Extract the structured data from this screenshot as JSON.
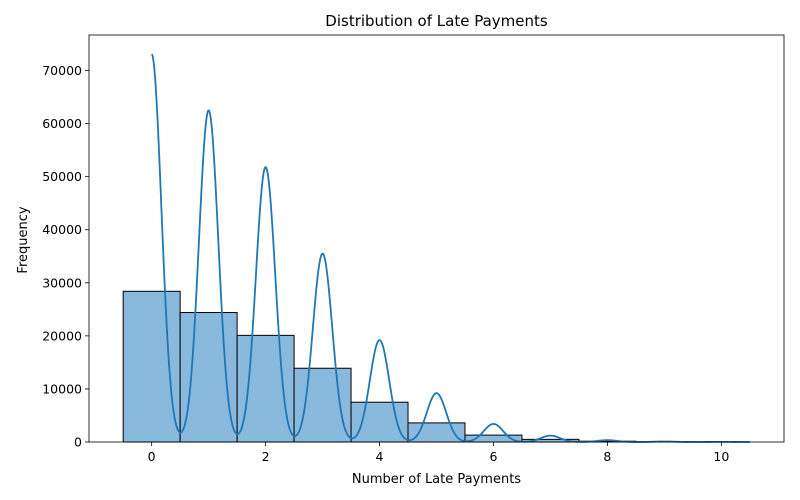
{
  "chart_data": {
    "type": "bar",
    "title": "Distribution of Late Payments",
    "xlabel": "Number of Late Payments",
    "ylabel": "Frequency",
    "xlim": [
      -1.1,
      11.1
    ],
    "ylim": [
      0,
      76700
    ],
    "x_ticks": [
      0,
      2,
      4,
      6,
      8,
      10
    ],
    "y_ticks": [
      0,
      10000,
      20000,
      30000,
      40000,
      50000,
      60000,
      70000
    ],
    "histogram": {
      "bin_edges": [
        -0.5,
        0.5,
        1.5,
        2.5,
        3.5,
        4.5,
        5.5,
        6.5,
        7.5,
        8.5,
        9.5,
        10.5
      ],
      "counts": [
        28400,
        24400,
        20100,
        13900,
        7500,
        3600,
        1300,
        500,
        150,
        50,
        20
      ],
      "fill_color": "#8ab9de",
      "edge_color": "#000000"
    },
    "kde": {
      "color": "#1f77b4",
      "peaks": [
        {
          "x": 0,
          "y": 73100
        },
        {
          "x": 1,
          "y": 62500
        },
        {
          "x": 2,
          "y": 51800
        },
        {
          "x": 3,
          "y": 35500
        },
        {
          "x": 4,
          "y": 19200
        },
        {
          "x": 5,
          "y": 9200
        },
        {
          "x": 6,
          "y": 3400
        },
        {
          "x": 7,
          "y": 1200
        },
        {
          "x": 8,
          "y": 350
        },
        {
          "x": 9,
          "y": 100
        },
        {
          "x": 10,
          "y": 30
        }
      ]
    },
    "grid": false,
    "legend": "none"
  }
}
